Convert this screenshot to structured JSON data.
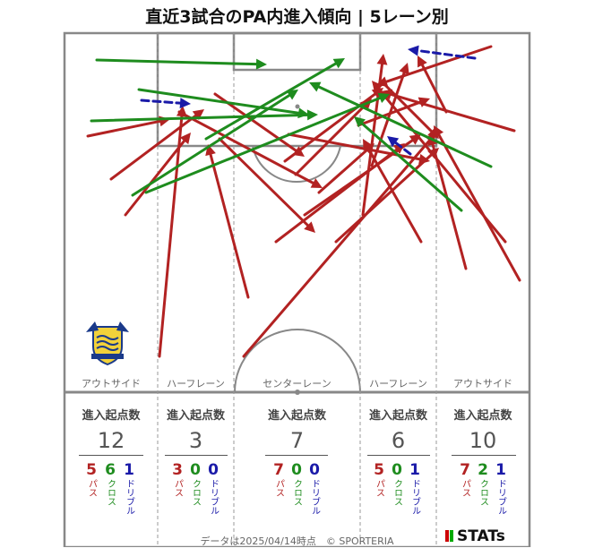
{
  "title": "直近3試合のPA内進入傾向 | 5レーン別",
  "colors": {
    "pass": "#b22222",
    "cross": "#1e8c1e",
    "dribble": "#1a1aa8"
  },
  "lanes": [
    {
      "label": "アウトサイド",
      "head": "進入起点数",
      "total": "12",
      "pass": "5",
      "cross": "6",
      "dribble": "1"
    },
    {
      "label": "ハーフレーン",
      "head": "進入起点数",
      "total": "3",
      "pass": "3",
      "cross": "0",
      "dribble": "0"
    },
    {
      "label": "センターレーン",
      "head": "進入起点数",
      "total": "7",
      "pass": "7",
      "cross": "0",
      "dribble": "0"
    },
    {
      "label": "ハーフレーン",
      "head": "進入起点数",
      "total": "6",
      "pass": "5",
      "cross": "0",
      "dribble": "1"
    },
    {
      "label": "アウトサイド",
      "head": "進入起点数",
      "total": "10",
      "pass": "7",
      "cross": "2",
      "dribble": "1"
    }
  ],
  "type_labels": {
    "pass": "パス",
    "cross": "クロス",
    "dribble": "ドリブル"
  },
  "footer": "データは2025/04/14時点　© SPORTERIA",
  "brand": "STATs",
  "chart_data": {
    "type": "arrow-map",
    "title": "直近3試合のPA内進入傾向 | 5レーン別",
    "categories": [
      "アウトサイド",
      "ハーフレーン",
      "センターレーン",
      "ハーフレーン",
      "アウトサイド"
    ],
    "series": [
      {
        "name": "パス",
        "values": [
          5,
          3,
          7,
          5,
          7
        ]
      },
      {
        "name": "クロス",
        "values": [
          6,
          0,
          0,
          0,
          2
        ]
      },
      {
        "name": "ドリブル",
        "values": [
          1,
          0,
          0,
          1,
          1
        ]
      }
    ],
    "totals": [
      12,
      3,
      7,
      6,
      10
    ],
    "arrows": [
      {
        "type": "pass",
        "from": [
          98,
          152
        ],
        "to": [
          190,
          133
        ]
      },
      {
        "type": "pass",
        "from": [
          124,
          200
        ],
        "to": [
          228,
          122
        ]
      },
      {
        "type": "pass",
        "from": [
          140,
          240
        ],
        "to": [
          213,
          148
        ]
      },
      {
        "type": "pass",
        "from": [
          178,
          398
        ],
        "to": [
          204,
          118
        ]
      },
      {
        "type": "pass",
        "from": [
          277,
          332
        ],
        "to": [
          232,
          161
        ]
      },
      {
        "type": "pass",
        "from": [
          200,
          125
        ],
        "to": [
          360,
          210
        ]
      },
      {
        "type": "pass",
        "from": [
          245,
          155
        ],
        "to": [
          352,
          260
        ]
      },
      {
        "type": "pass",
        "from": [
          308,
          270
        ],
        "to": [
          452,
          160
        ]
      },
      {
        "type": "pass",
        "from": [
          322,
          150
        ],
        "to": [
          480,
          180
        ]
      },
      {
        "type": "pass",
        "from": [
          356,
          215
        ],
        "to": [
          418,
          160
        ]
      },
      {
        "type": "pass",
        "from": [
          272,
          398
        ],
        "to": [
          487,
          148
        ]
      },
      {
        "type": "pass",
        "from": [
          340,
          240
        ],
        "to": [
          470,
          150
        ]
      },
      {
        "type": "pass",
        "from": [
          405,
          240
        ],
        "to": [
          428,
          60
        ]
      },
      {
        "type": "pass",
        "from": [
          415,
          185
        ],
        "to": [
          455,
          70
        ]
      },
      {
        "type": "pass",
        "from": [
          580,
          313
        ],
        "to": [
          484,
          140
        ]
      },
      {
        "type": "pass",
        "from": [
          564,
          270
        ],
        "to": [
          415,
          90
        ]
      },
      {
        "type": "pass",
        "from": [
          548,
          52
        ],
        "to": [
          420,
          95
        ]
      },
      {
        "type": "pass",
        "from": [
          574,
          146
        ],
        "to": [
          425,
          102
        ]
      },
      {
        "type": "pass",
        "from": [
          498,
          125
        ],
        "to": [
          466,
          62
        ]
      },
      {
        "type": "pass",
        "from": [
          470,
          270
        ],
        "to": [
          405,
          155
        ]
      },
      {
        "type": "pass",
        "from": [
          318,
          180
        ],
        "to": [
          428,
          98
        ]
      },
      {
        "type": "pass",
        "from": [
          330,
          195
        ],
        "to": [
          415,
          110
        ]
      },
      {
        "type": "pass",
        "from": [
          375,
          270
        ],
        "to": [
          490,
          165
        ]
      },
      {
        "type": "pass",
        "from": [
          430,
          95
        ],
        "to": [
          490,
          155
        ]
      },
      {
        "type": "pass",
        "from": [
          520,
          300
        ],
        "to": [
          480,
          150
        ]
      },
      {
        "type": "pass",
        "from": [
          400,
          140
        ],
        "to": [
          480,
          110
        ]
      },
      {
        "type": "pass",
        "from": [
          240,
          105
        ],
        "to": [
          340,
          175
        ]
      },
      {
        "type": "cross",
        "from": [
          108,
          67
        ],
        "to": [
          298,
          72
        ]
      },
      {
        "type": "cross",
        "from": [
          102,
          135
        ],
        "to": [
          355,
          128
        ]
      },
      {
        "type": "cross",
        "from": [
          155,
          100
        ],
        "to": [
          345,
          128
        ]
      },
      {
        "type": "cross",
        "from": [
          148,
          218
        ],
        "to": [
          333,
          100
        ]
      },
      {
        "type": "cross",
        "from": [
          163,
          215
        ],
        "to": [
          435,
          105
        ]
      },
      {
        "type": "cross",
        "from": [
          230,
          155
        ],
        "to": [
          385,
          65
        ]
      },
      {
        "type": "cross",
        "from": [
          548,
          186
        ],
        "to": [
          345,
          92
        ]
      },
      {
        "type": "cross",
        "from": [
          515,
          235
        ],
        "to": [
          395,
          130
        ]
      },
      {
        "type": "dribble",
        "from": [
          158,
          112
        ],
        "to": [
          213,
          116
        ]
      },
      {
        "type": "dribble",
        "from": [
          530,
          65
        ],
        "to": [
          455,
          55
        ]
      },
      {
        "type": "dribble",
        "from": [
          458,
          172
        ],
        "to": [
          432,
          152
        ]
      }
    ]
  }
}
